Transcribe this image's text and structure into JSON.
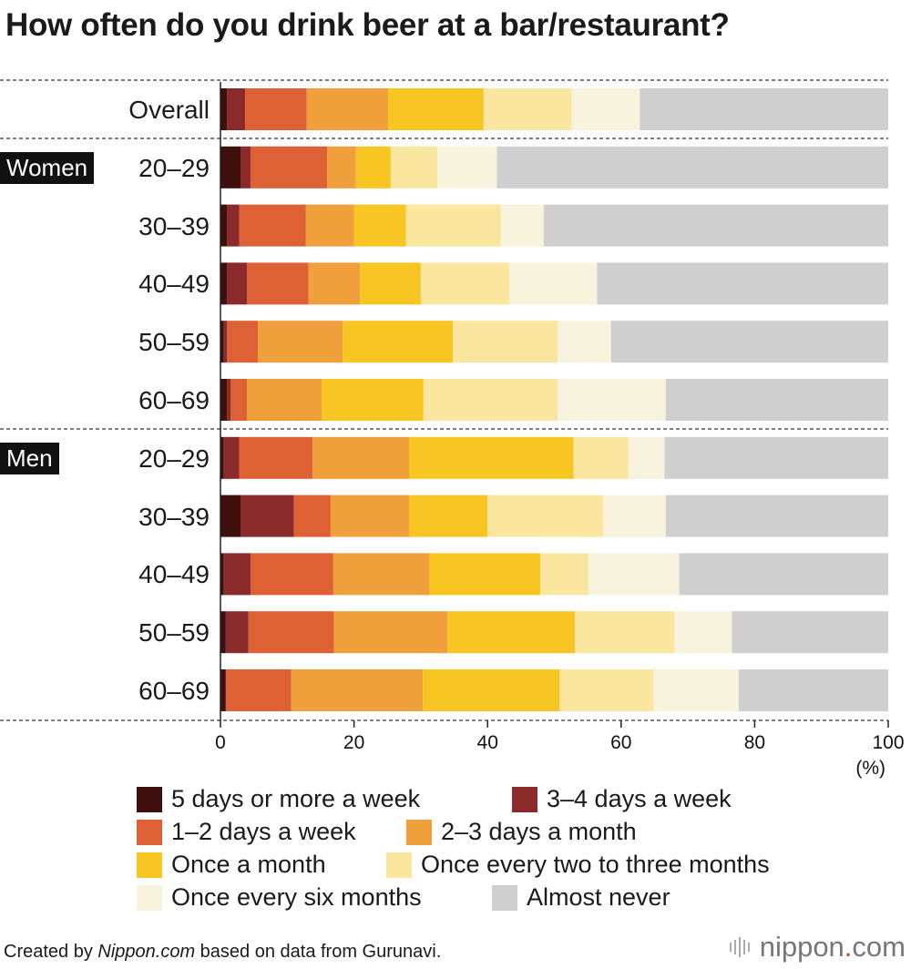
{
  "chart_data": {
    "type": "bar",
    "orientation": "horizontal",
    "stacked": true,
    "title": "How often do you drink beer at a bar/restaurant?",
    "xlim": [
      0,
      100
    ],
    "xticks": [
      0,
      20,
      40,
      60,
      80,
      100
    ],
    "xunit": "(%)",
    "groups": [
      {
        "name": "",
        "rows": [
          0
        ]
      },
      {
        "name": "Women",
        "rows": [
          1,
          2,
          3,
          4,
          5
        ]
      },
      {
        "name": "Men",
        "rows": [
          6,
          7,
          8,
          9,
          10
        ]
      }
    ],
    "categories": [
      "Overall",
      "20–29",
      "30–39",
      "40–49",
      "50–59",
      "60–69",
      "20–29",
      "30–39",
      "40–49",
      "50–59",
      "60–69"
    ],
    "series": [
      {
        "name": "5 days or more a week",
        "color": "#3e0f0c",
        "values": [
          1.0,
          3.0,
          1.0,
          1.0,
          0.5,
          1.0,
          0.5,
          3.0,
          0.5,
          0.8,
          0.8
        ]
      },
      {
        "name": "3–4 days a week",
        "color": "#8b2a2a",
        "values": [
          2.7,
          1.5,
          1.8,
          3.0,
          0.5,
          0.5,
          2.3,
          8.0,
          4.0,
          3.4,
          0
        ]
      },
      {
        "name": "1–2 days a week",
        "color": "#dd6135",
        "values": [
          9.2,
          11.5,
          10.0,
          9.2,
          4.6,
          2.5,
          11.0,
          5.5,
          12.4,
          12.8,
          9.8
        ]
      },
      {
        "name": "2–3 days a month",
        "color": "#f0a03a",
        "values": [
          12.2,
          4.3,
          7.2,
          7.7,
          12.7,
          11.2,
          14.5,
          11.8,
          14.4,
          17.0,
          19.7
        ]
      },
      {
        "name": "Once a month",
        "color": "#f8c623",
        "values": [
          14.3,
          5.2,
          7.8,
          9.1,
          16.5,
          15.2,
          24.6,
          11.7,
          16.6,
          19.1,
          20.5
        ]
      },
      {
        "name": "Once every two to three months",
        "color": "#fbe6a0",
        "values": [
          13.2,
          7.0,
          14.2,
          13.3,
          15.7,
          20.1,
          8.2,
          17.3,
          7.2,
          14.9,
          14.1
        ]
      },
      {
        "name": "Once every six months",
        "color": "#f7f3dd",
        "values": [
          10.2,
          8.9,
          6.4,
          13.1,
          8.0,
          16.2,
          5.4,
          9.4,
          13.6,
          8.6,
          12.7
        ]
      },
      {
        "name": "Almost never",
        "color": "#cfcfcf",
        "values": [
          37.2,
          58.6,
          51.6,
          43.6,
          41.5,
          33.3,
          33.5,
          33.3,
          31.3,
          23.4,
          22.4
        ]
      }
    ]
  },
  "footer": {
    "prefix": "Created by ",
    "source_site": "Nippon.com",
    "suffix": " based on data from Gurunavi."
  },
  "brand": {
    "name": "nippon",
    "dot": ".",
    "domain": "com"
  }
}
